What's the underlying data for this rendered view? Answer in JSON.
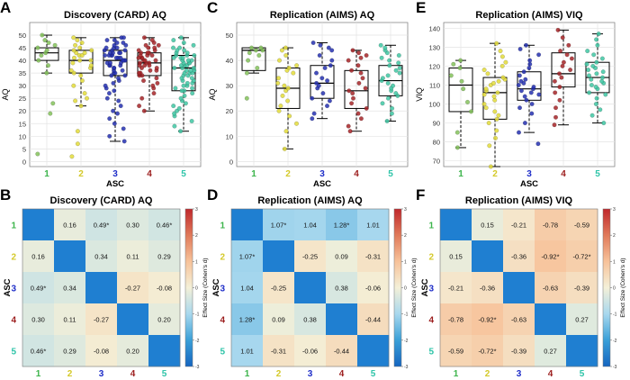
{
  "figure": {
    "category_colors": [
      "#3cb44b",
      "#d4c92a",
      "#1f2ec8",
      "#9b1c1c",
      "#2ec4a8"
    ],
    "point_colors": [
      "#84c25a",
      "#e3dc3a",
      "#2530b0",
      "#a62428",
      "#3fc7a3"
    ],
    "diagonal_color": "#1f7fd1",
    "colorbar_colors": [
      "#1565c0",
      "#3aa0d8",
      "#a8d8ee",
      "#f4f0d8",
      "#f7c29a",
      "#e07a5a",
      "#c0282c"
    ]
  },
  "chart_data": [
    {
      "id": "A",
      "type": "box",
      "title": "Discovery (CARD) AQ",
      "xlabel": "ASC",
      "ylabel": "AQ",
      "categories": [
        "1",
        "2",
        "3",
        "4",
        "5"
      ],
      "ylim": [
        -2,
        55
      ],
      "yticks": [
        0,
        5,
        10,
        15,
        20,
        25,
        30,
        35,
        40,
        45,
        50
      ],
      "boxes": [
        {
          "min": 35,
          "q1": 40,
          "median": 43,
          "q3": 45,
          "max": 50
        },
        {
          "min": 22,
          "q1": 35,
          "median": 40,
          "q3": 44,
          "max": 49
        },
        {
          "min": 8,
          "q1": 34,
          "median": 40,
          "q3": 44,
          "max": 49
        },
        {
          "min": 20,
          "q1": 34,
          "median": 39,
          "q3": 43,
          "max": 49
        },
        {
          "min": 12,
          "q1": 28,
          "median": 37,
          "q3": 42,
          "max": 49
        }
      ],
      "points": [
        [
          35,
          38,
          40,
          42,
          43,
          44,
          45,
          46,
          47,
          48,
          50,
          23,
          19,
          3
        ],
        [
          22,
          24,
          27,
          30,
          32,
          34,
          35,
          36,
          37,
          38,
          39,
          40,
          40,
          41,
          42,
          42,
          43,
          43,
          44,
          44,
          45,
          46,
          47,
          48,
          49,
          25,
          12,
          7,
          2
        ],
        [
          8,
          10,
          13,
          15,
          17,
          19,
          20,
          22,
          24,
          25,
          27,
          28,
          29,
          30,
          31,
          32,
          33,
          34,
          34,
          35,
          35,
          36,
          36,
          37,
          37,
          38,
          38,
          38,
          39,
          39,
          39,
          40,
          40,
          40,
          40,
          41,
          41,
          41,
          42,
          42,
          42,
          42,
          43,
          43,
          43,
          43,
          44,
          44,
          44,
          45,
          45,
          45,
          46,
          46,
          47,
          47,
          48,
          48,
          49,
          49
        ],
        [
          20,
          22,
          25,
          27,
          29,
          30,
          31,
          32,
          33,
          34,
          34,
          35,
          35,
          36,
          36,
          37,
          37,
          38,
          38,
          38,
          39,
          39,
          39,
          40,
          40,
          40,
          41,
          41,
          41,
          42,
          42,
          42,
          43,
          43,
          43,
          44,
          44,
          45,
          45,
          46,
          46,
          47,
          48,
          49
        ],
        [
          12,
          14,
          16,
          18,
          19,
          20,
          21,
          22,
          23,
          24,
          25,
          26,
          27,
          28,
          28,
          29,
          29,
          30,
          30,
          31,
          31,
          32,
          32,
          33,
          33,
          34,
          34,
          35,
          35,
          35,
          36,
          36,
          36,
          37,
          37,
          37,
          38,
          38,
          38,
          39,
          39,
          39,
          40,
          40,
          40,
          41,
          41,
          41,
          42,
          42,
          42,
          43,
          43,
          44,
          44,
          45,
          45,
          46,
          47,
          48,
          49
        ]
      ]
    },
    {
      "id": "C",
      "type": "box",
      "title": "Replication (AIMS) AQ",
      "xlabel": "ASC",
      "ylabel": "AQ",
      "categories": [
        "1",
        "2",
        "3",
        "4",
        "5"
      ],
      "ylim": [
        -2,
        55
      ],
      "yticks": [
        0,
        10,
        20,
        30,
        40,
        50
      ],
      "boxes": [
        {
          "min": 35,
          "q1": 36,
          "median": 44,
          "q3": 45,
          "max": 45
        },
        {
          "min": 5,
          "q1": 21,
          "median": 29,
          "q3": 37,
          "max": 45
        },
        {
          "min": 17,
          "q1": 25,
          "median": 31,
          "q3": 38,
          "max": 47
        },
        {
          "min": 12,
          "q1": 21,
          "median": 28,
          "q3": 36,
          "max": 44
        },
        {
          "min": 16,
          "q1": 26,
          "median": 32,
          "q3": 38,
          "max": 46
        }
      ],
      "points": [
        [
          35,
          37,
          40,
          42,
          43,
          44,
          44,
          45,
          45,
          25
        ],
        [
          5,
          12,
          15,
          18,
          20,
          22,
          24,
          26,
          28,
          29,
          30,
          31,
          33,
          35,
          36,
          37,
          38,
          40,
          42,
          44,
          45
        ],
        [
          17,
          19,
          22,
          24,
          25,
          27,
          29,
          30,
          31,
          32,
          33,
          35,
          37,
          38,
          40,
          42,
          44,
          45,
          46,
          47
        ],
        [
          12,
          14,
          17,
          19,
          21,
          23,
          25,
          27,
          28,
          29,
          31,
          33,
          35,
          36,
          38,
          40,
          41,
          42,
          43,
          44
        ],
        [
          16,
          19,
          21,
          23,
          25,
          26,
          27,
          28,
          29,
          30,
          31,
          32,
          33,
          34,
          35,
          36,
          37,
          38,
          39,
          40,
          41,
          42,
          43,
          44,
          45,
          46
        ]
      ]
    },
    {
      "id": "E",
      "type": "box",
      "title": "Replication (AIMS) VIQ",
      "xlabel": "ASC",
      "ylabel": "VIQ",
      "categories": [
        "1",
        "2",
        "3",
        "4",
        "5"
      ],
      "ylim": [
        67,
        143
      ],
      "yticks": [
        70,
        80,
        90,
        100,
        110,
        120,
        130,
        140
      ],
      "boxes": [
        {
          "min": 77,
          "q1": 96,
          "median": 110,
          "q3": 119,
          "max": 123
        },
        {
          "min": 67,
          "q1": 92,
          "median": 106,
          "q3": 114,
          "max": 132
        },
        {
          "min": 85,
          "q1": 102,
          "median": 108,
          "q3": 117,
          "max": 131
        },
        {
          "min": 89,
          "q1": 109,
          "median": 116,
          "q3": 127,
          "max": 139
        },
        {
          "min": 90,
          "q1": 106,
          "median": 114,
          "q3": 122,
          "max": 137
        }
      ],
      "points": [
        [
          77,
          85,
          96,
          101,
          108,
          112,
          115,
          119,
          121,
          123
        ],
        [
          67,
          78,
          82,
          86,
          90,
          92,
          94,
          96,
          98,
          100,
          102,
          104,
          105,
          106,
          107,
          108,
          110,
          111,
          112,
          113,
          114,
          116,
          118,
          120,
          122,
          125,
          128,
          132
        ],
        [
          79,
          85,
          90,
          95,
          98,
          100,
          102,
          104,
          105,
          106,
          107,
          108,
          109,
          110,
          111,
          112,
          113,
          115,
          117,
          119,
          121,
          123,
          126,
          129,
          131
        ],
        [
          89,
          93,
          98,
          102,
          106,
          109,
          112,
          114,
          116,
          118,
          120,
          122,
          124,
          126,
          128,
          131,
          135,
          139
        ],
        [
          90,
          94,
          97,
          100,
          103,
          105,
          106,
          108,
          109,
          110,
          111,
          112,
          113,
          114,
          115,
          116,
          117,
          118,
          119,
          120,
          121,
          122,
          124,
          126,
          128,
          131,
          134,
          137
        ]
      ]
    },
    {
      "id": "B",
      "type": "heatmap",
      "title": "Discovery (CARD) AQ",
      "xlabel": "ASC",
      "ylabel": "ASC",
      "colorbar_label": "Effect Size (Cohen's d)",
      "clim": [
        -3,
        3
      ],
      "colorbar_ticks": [
        "3",
        "2",
        "1",
        "0",
        "-1",
        "-2",
        "-3"
      ],
      "categories": [
        "1",
        "2",
        "3",
        "4",
        "5"
      ],
      "values": [
        [
          null,
          0.16,
          0.49,
          0.3,
          0.46
        ],
        [
          0.16,
          null,
          0.34,
          0.11,
          0.29
        ],
        [
          0.49,
          0.34,
          null,
          -0.27,
          -0.08
        ],
        [
          0.3,
          0.11,
          -0.27,
          null,
          0.2
        ],
        [
          0.46,
          0.29,
          -0.08,
          0.2,
          null
        ]
      ],
      "labels": [
        [
          "",
          "0.16",
          "0.49*",
          "0.30",
          "0.46*"
        ],
        [
          "0.16",
          "",
          "0.34",
          "0.11",
          "0.29"
        ],
        [
          "0.49*",
          "0.34",
          "",
          "-0.27",
          "-0.08"
        ],
        [
          "0.30",
          "0.11",
          "-0.27",
          "",
          "0.20"
        ],
        [
          "0.46*",
          "0.29",
          "-0.08",
          "0.20",
          ""
        ]
      ]
    },
    {
      "id": "D",
      "type": "heatmap",
      "title": "Replication (AIMS) AQ",
      "xlabel": "ASC",
      "ylabel": "ASC",
      "colorbar_label": "Effect Size (Cohen's d)",
      "clim": [
        -3,
        3
      ],
      "colorbar_ticks": [
        "3",
        "2",
        "1",
        "0",
        "-1",
        "-2",
        "-3"
      ],
      "categories": [
        "1",
        "2",
        "3",
        "4",
        "5"
      ],
      "values": [
        [
          null,
          1.07,
          1.04,
          1.28,
          1.01
        ],
        [
          1.07,
          null,
          -0.25,
          0.09,
          -0.31
        ],
        [
          1.04,
          -0.25,
          null,
          0.38,
          -0.06
        ],
        [
          1.28,
          0.09,
          0.38,
          null,
          -0.44
        ],
        [
          1.01,
          -0.31,
          -0.06,
          -0.44,
          null
        ]
      ],
      "labels": [
        [
          "",
          "1.07*",
          "1.04",
          "1.28*",
          "1.01"
        ],
        [
          "1.07*",
          "",
          "-0.25",
          "0.09",
          "-0.31"
        ],
        [
          "1.04",
          "-0.25",
          "",
          "0.38",
          "-0.06"
        ],
        [
          "1.28*",
          "0.09",
          "0.38",
          "",
          "-0.44"
        ],
        [
          "1.01",
          "-0.31",
          "-0.06",
          "-0.44",
          ""
        ]
      ]
    },
    {
      "id": "F",
      "type": "heatmap",
      "title": "Replication (AIMS) VIQ",
      "xlabel": "ASC",
      "ylabel": "ASC",
      "colorbar_label": "Effect Size (Cohen's d)",
      "clim": [
        -3,
        3
      ],
      "colorbar_ticks": [
        "3",
        "2",
        "1",
        "0",
        "-1",
        "-2",
        "-3"
      ],
      "categories": [
        "1",
        "2",
        "3",
        "4",
        "5"
      ],
      "values": [
        [
          null,
          0.15,
          -0.21,
          -0.78,
          -0.59
        ],
        [
          0.15,
          null,
          -0.36,
          -0.92,
          -0.72
        ],
        [
          -0.21,
          -0.36,
          null,
          -0.63,
          -0.39
        ],
        [
          -0.78,
          -0.92,
          -0.63,
          null,
          0.27
        ],
        [
          -0.59,
          -0.72,
          -0.39,
          0.27,
          null
        ]
      ],
      "labels": [
        [
          "",
          "0.15",
          "-0.21",
          "-0.78",
          "-0.59"
        ],
        [
          "0.15",
          "",
          "-0.36",
          "-0.92*",
          "-0.72*"
        ],
        [
          "-0.21",
          "-0.36",
          "",
          "-0.63",
          "-0.39"
        ],
        [
          "-0.78",
          "-0.92*",
          "-0.63",
          "",
          "0.27"
        ],
        [
          "-0.59",
          "-0.72*",
          "-0.39",
          "0.27",
          ""
        ]
      ]
    }
  ]
}
